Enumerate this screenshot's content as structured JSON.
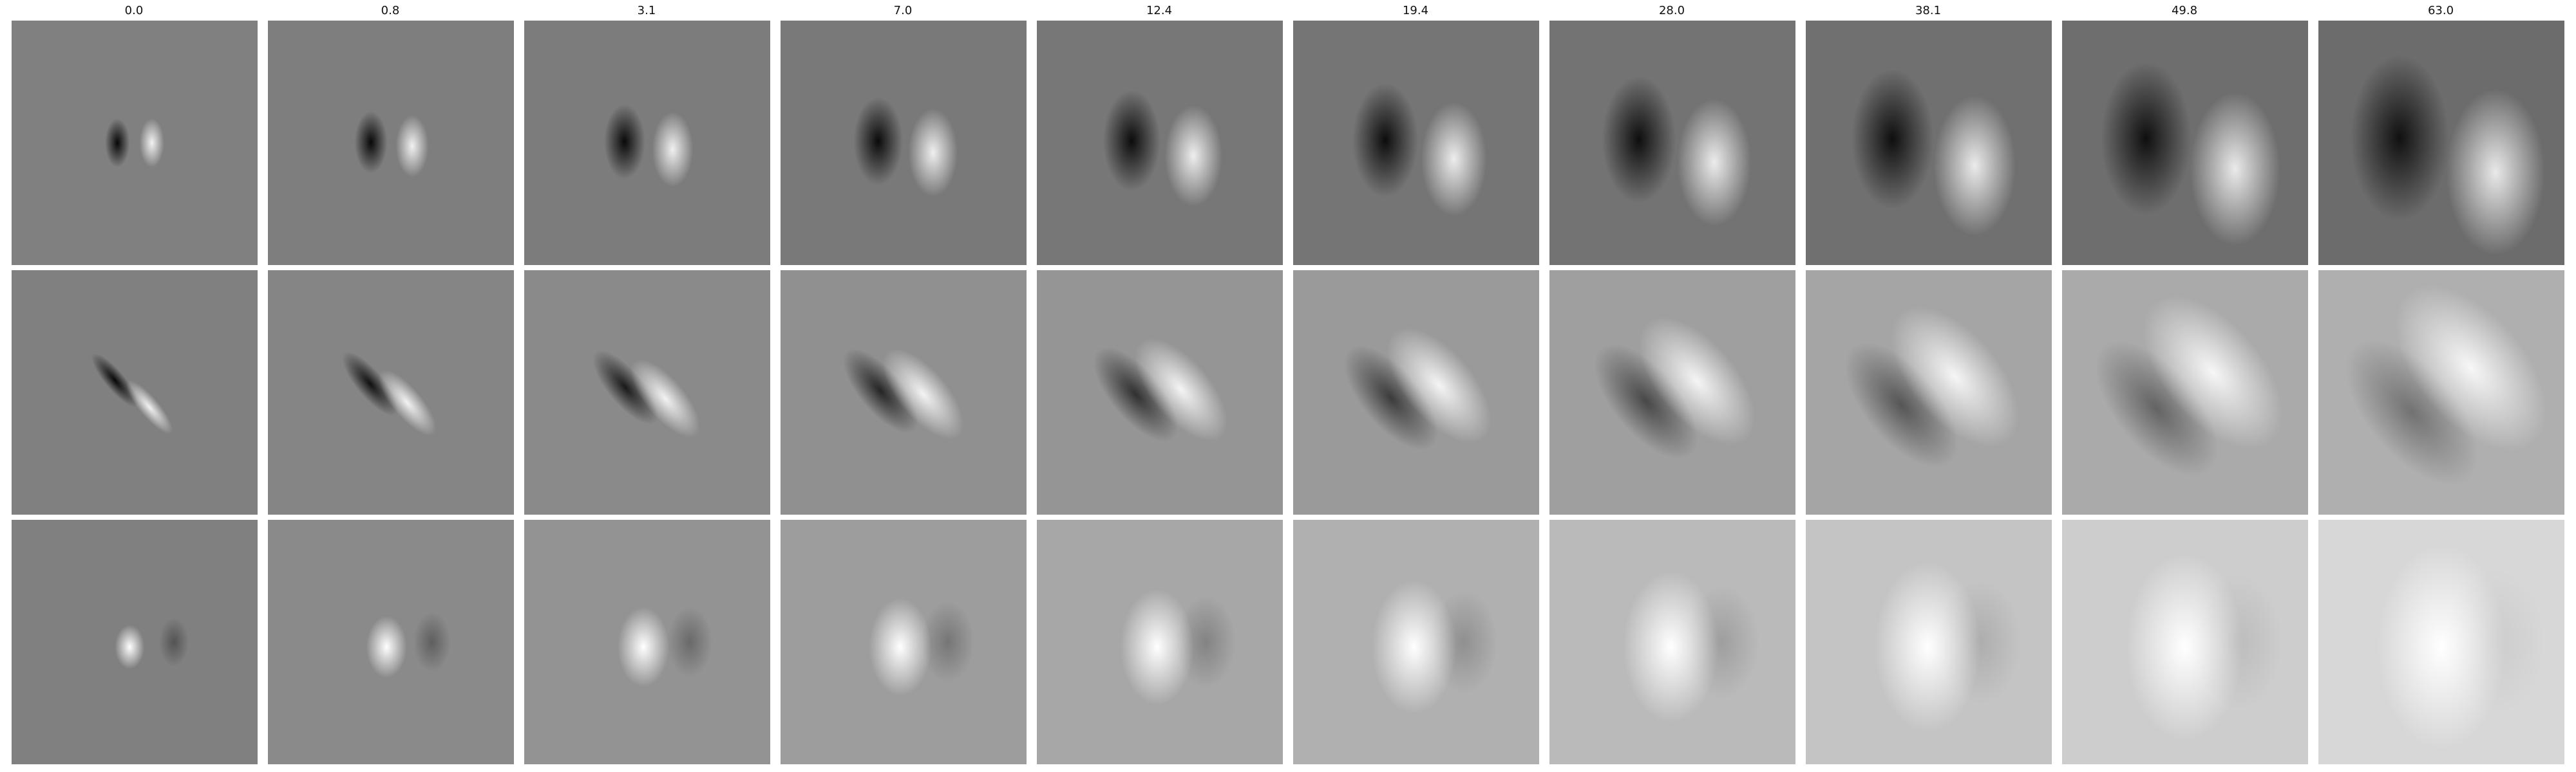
{
  "figure": {
    "column_titles": [
      "0.0",
      "0.8",
      "3.1",
      "7.0",
      "12.4",
      "19.4",
      "28.0",
      "38.1",
      "49.8",
      "63.0"
    ],
    "rows": 3,
    "colormap": [
      "#000000",
      "#ffffff"
    ],
    "background": "#ffffff"
  }
}
